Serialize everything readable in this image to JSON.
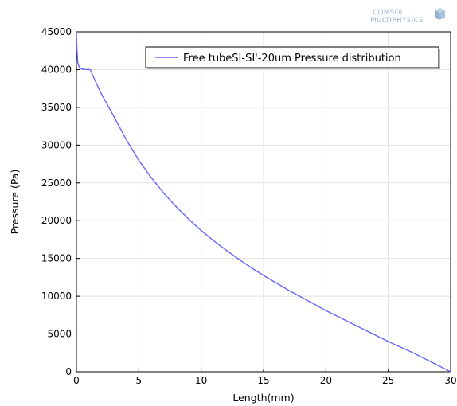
{
  "brand": {
    "line1": "COMSOL",
    "line2": "MULTIPHYSICS"
  },
  "chart_data": {
    "type": "line",
    "xlabel": "Length(mm)",
    "ylabel": "Pressure (Pa)",
    "xlim": [
      0,
      30
    ],
    "ylim": [
      0,
      45000
    ],
    "xticks": [
      0,
      5,
      10,
      15,
      20,
      25,
      30
    ],
    "yticks": [
      0,
      5000,
      10000,
      15000,
      20000,
      25000,
      30000,
      35000,
      40000,
      45000
    ],
    "grid": true,
    "legend_position": "top-right",
    "series": [
      {
        "name": "Free tubeSI-SI'-20um  Pressure distribution",
        "color": "#6666ff",
        "x": [
          0,
          0.03,
          0.1,
          0.2,
          0.35,
          0.5,
          0.7,
          0.9,
          1.1,
          1.4,
          2,
          3,
          4,
          5,
          6,
          7,
          8,
          9,
          10,
          11,
          12,
          13,
          14,
          15,
          17,
          20,
          22,
          25,
          27,
          30
        ],
        "y": [
          45000,
          43000,
          41000,
          40400,
          40150,
          40050,
          40020,
          40000,
          40000,
          38900,
          36800,
          33800,
          30700,
          28000,
          25700,
          23650,
          21850,
          20200,
          18700,
          17350,
          16100,
          14900,
          13800,
          12750,
          10800,
          8100,
          6450,
          4000,
          2500,
          0
        ]
      }
    ]
  }
}
